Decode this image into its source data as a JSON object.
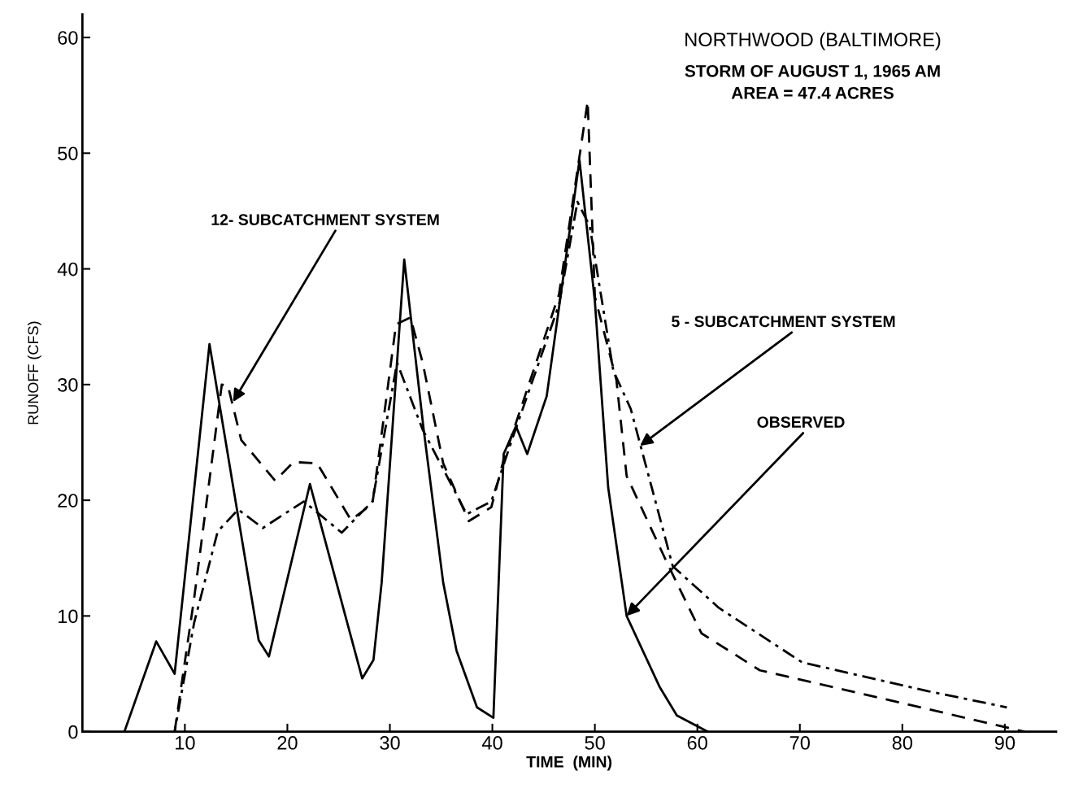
{
  "chart_data": {
    "type": "line",
    "title": "NORTHWOOD (BALTIMORE)",
    "subtitle": "STORM OF AUGUST 1, 1965 AM\nAREA = 47.4 ACRES",
    "xlabel": "TIME  (MIN)",
    "ylabel": "RUNOFF (CFS)",
    "xlim": [
      0,
      95
    ],
    "ylim": [
      0,
      62
    ],
    "xticks": [
      10,
      20,
      30,
      40,
      50,
      60,
      70,
      80,
      90
    ],
    "yticks": [
      0,
      10,
      20,
      30,
      40,
      50,
      60
    ],
    "grid": false,
    "marker": "none",
    "series": [
      {
        "color": "#000000",
        "line_style": "solid",
        "x": [
          4.1,
          7.2,
          9,
          12.4,
          17.2,
          18.2,
          22.2,
          27.3,
          28.4,
          29.2,
          31.4,
          33.3,
          35.2,
          36.5,
          38.5,
          40.1,
          41.1,
          42.3,
          43.4,
          45.3,
          48.5,
          50,
          51.3,
          53.1,
          56.3,
          58,
          61
        ],
        "values": [
          0,
          7.8,
          5,
          33.5,
          7.9,
          6.5,
          21.4,
          4.6,
          6.2,
          12.9,
          40.8,
          26.1,
          12.9,
          7,
          2.1,
          1.2,
          24,
          26.4,
          24,
          29,
          49.4,
          37.2,
          21.1,
          10,
          3.9,
          1.4,
          0
        ]
      },
      {
        "color": "#000000",
        "line_style": "dashed",
        "x": [
          9,
          10.9,
          13.6,
          14.2,
          15.5,
          18.8,
          20.6,
          22.9,
          26.2,
          28.3,
          30.6,
          32,
          33.2,
          35.2,
          37.7,
          39.9,
          41.1,
          46.5,
          49.3,
          50,
          52.1,
          53.1,
          57.2,
          60.4,
          66.1,
          78.4,
          91.9
        ],
        "values": [
          0,
          11.5,
          30,
          29.9,
          25.2,
          21.7,
          23.3,
          23.2,
          18.3,
          19.7,
          35.2,
          35.8,
          31.9,
          23.2,
          18.2,
          19.4,
          23.5,
          37.8,
          54.5,
          37.6,
          30.4,
          22.1,
          14.3,
          8.5,
          5.3,
          2.8,
          0
        ]
      },
      {
        "color": "#000000",
        "line_style": "dashdot",
        "x": [
          9,
          10.9,
          13.2,
          15.2,
          17.6,
          21.6,
          25.3,
          28.3,
          30.7,
          33.2,
          37.5,
          39.9,
          41.9,
          46.5,
          48.3,
          49.5,
          51.8,
          53.5,
          57.6,
          62.1,
          70.2,
          82.5,
          90.2
        ],
        "values": [
          0,
          9.4,
          17.3,
          19.2,
          17.6,
          19.9,
          17.2,
          19.9,
          31.9,
          26.1,
          18.8,
          19.9,
          25.2,
          36.9,
          45.8,
          43.7,
          31.2,
          27.9,
          14.3,
          10.7,
          6,
          3.5,
          2.1
        ]
      }
    ],
    "annotations": [
      {
        "text": "12- SUBCATCHMENT SYSTEM",
        "x": 14.7,
        "y": 28.5
      },
      {
        "text": "5 - SUBCATCHMENT SYSTEM",
        "x": 54.4,
        "y": 24.7
      },
      {
        "text": "OBSERVED",
        "x": 53.1,
        "y": 10
      }
    ]
  }
}
